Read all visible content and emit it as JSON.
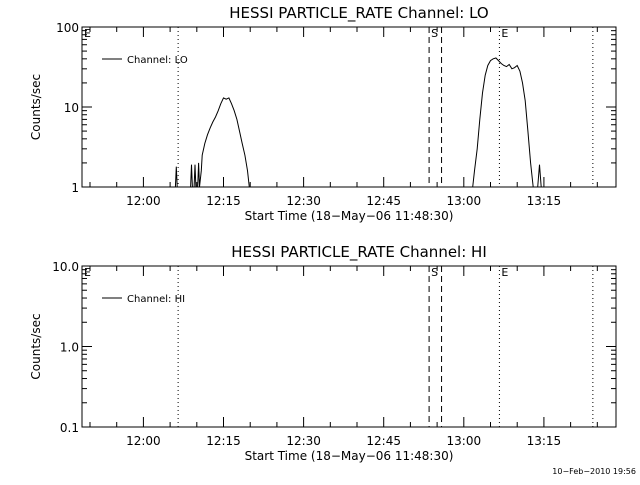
{
  "chart_data": [
    {
      "type": "line",
      "title": "HESSI PARTICLE_RATE Channel: LO",
      "xlabel": "Start Time (18−May−06 11:48:30)",
      "ylabel": "Counts/sec",
      "yscale": "log",
      "ylim": [
        1,
        100
      ],
      "yticks": [
        1,
        10,
        100
      ],
      "ytick_labels": [
        "1",
        "10",
        "100"
      ],
      "xlim": [
        "11:48:30",
        "13:28:30"
      ],
      "xticks": [
        "12:00",
        "12:15",
        "12:30",
        "12:45",
        "13:00",
        "13:15"
      ],
      "grid": false,
      "legend_position": "top-left",
      "markers": [
        {
          "label": "E",
          "time": "11:48:30",
          "style": "dotted"
        },
        {
          "label": "",
          "time": "12:06:30",
          "style": "dotted"
        },
        {
          "label": "S",
          "time": "12:53:30",
          "style": "dashed"
        },
        {
          "label": "",
          "time": "12:55:50",
          "style": "dashed"
        },
        {
          "label": "E",
          "time": "13:06:40",
          "style": "dotted"
        },
        {
          "label": "",
          "time": "13:24:10",
          "style": "dotted"
        }
      ],
      "series": [
        {
          "name": "Channel: LO",
          "x": [
            "12:06:00",
            "12:06:10",
            "12:06:20",
            "12:06:40",
            "12:06:50",
            "12:07:00",
            "12:08:50",
            "12:09:00",
            "12:09:10",
            "12:09:30",
            "12:09:40",
            "12:09:50",
            "12:10:10",
            "12:10:20",
            "12:10:30",
            "12:10:50",
            "12:11:00",
            "12:11:30",
            "12:12:00",
            "12:12:30",
            "12:13:00",
            "12:13:30",
            "12:14:00",
            "12:14:30",
            "12:15:00",
            "12:15:30",
            "12:16:00",
            "12:16:30",
            "12:17:00",
            "12:17:30",
            "12:18:00",
            "12:18:30",
            "12:19:00",
            "12:19:30",
            "12:19:50",
            "12:20:10",
            "12:20:30",
            "13:01:40",
            "13:02:00",
            "13:02:30",
            "13:03:00",
            "13:03:30",
            "13:04:00",
            "13:04:30",
            "13:05:00",
            "13:05:30",
            "13:06:00",
            "13:06:30",
            "13:07:00",
            "13:07:30",
            "13:08:00",
            "13:08:30",
            "13:09:00",
            "13:09:30",
            "13:10:00",
            "13:10:30",
            "13:11:00",
            "13:11:30",
            "13:12:00",
            "13:12:30",
            "13:13:00",
            "13:13:30",
            "13:13:50",
            "13:14:10",
            "13:14:30",
            "13:14:50",
            "13:15:10"
          ],
          "values": [
            1,
            1.8,
            1,
            1,
            1,
            1,
            1,
            1.9,
            1,
            1,
            1.9,
            1,
            1,
            2,
            1,
            1.6,
            2.5,
            3.5,
            4.5,
            5.5,
            6.5,
            7.5,
            9,
            11,
            13,
            12.5,
            13,
            11,
            9,
            7,
            5,
            3.5,
            2.5,
            1.6,
            1,
            1,
            1,
            1,
            1.6,
            3,
            7,
            15,
            25,
            33,
            38,
            40,
            41,
            38,
            35,
            33,
            32,
            34,
            30,
            31,
            33,
            28,
            20,
            12,
            5,
            2,
            1,
            1,
            1,
            1.9,
            1,
            1,
            1
          ]
        }
      ]
    },
    {
      "type": "line",
      "title": "HESSI PARTICLE_RATE Channel: HI",
      "xlabel": "Start Time (18−May−06 11:48:30)",
      "ylabel": "Counts/sec",
      "yscale": "log",
      "ylim": [
        0.1,
        10
      ],
      "yticks": [
        0.1,
        1,
        10
      ],
      "ytick_labels": [
        "0.1",
        "1.0",
        "10.0"
      ],
      "xlim": [
        "11:48:30",
        "13:28:30"
      ],
      "xticks": [
        "12:00",
        "12:15",
        "12:30",
        "12:45",
        "13:00",
        "13:15"
      ],
      "grid": false,
      "legend_position": "top-left",
      "markers": [
        {
          "label": "E",
          "time": "11:48:30",
          "style": "dotted"
        },
        {
          "label": "",
          "time": "12:06:30",
          "style": "dotted"
        },
        {
          "label": "S",
          "time": "12:53:30",
          "style": "dashed"
        },
        {
          "label": "",
          "time": "12:55:50",
          "style": "dashed"
        },
        {
          "label": "E",
          "time": "13:06:40",
          "style": "dotted"
        },
        {
          "label": "",
          "time": "13:24:10",
          "style": "dotted"
        }
      ],
      "series": [
        {
          "name": "Channel: HI",
          "x": [],
          "values": []
        }
      ]
    }
  ],
  "timestamp": "10−Feb−2010 19:56"
}
